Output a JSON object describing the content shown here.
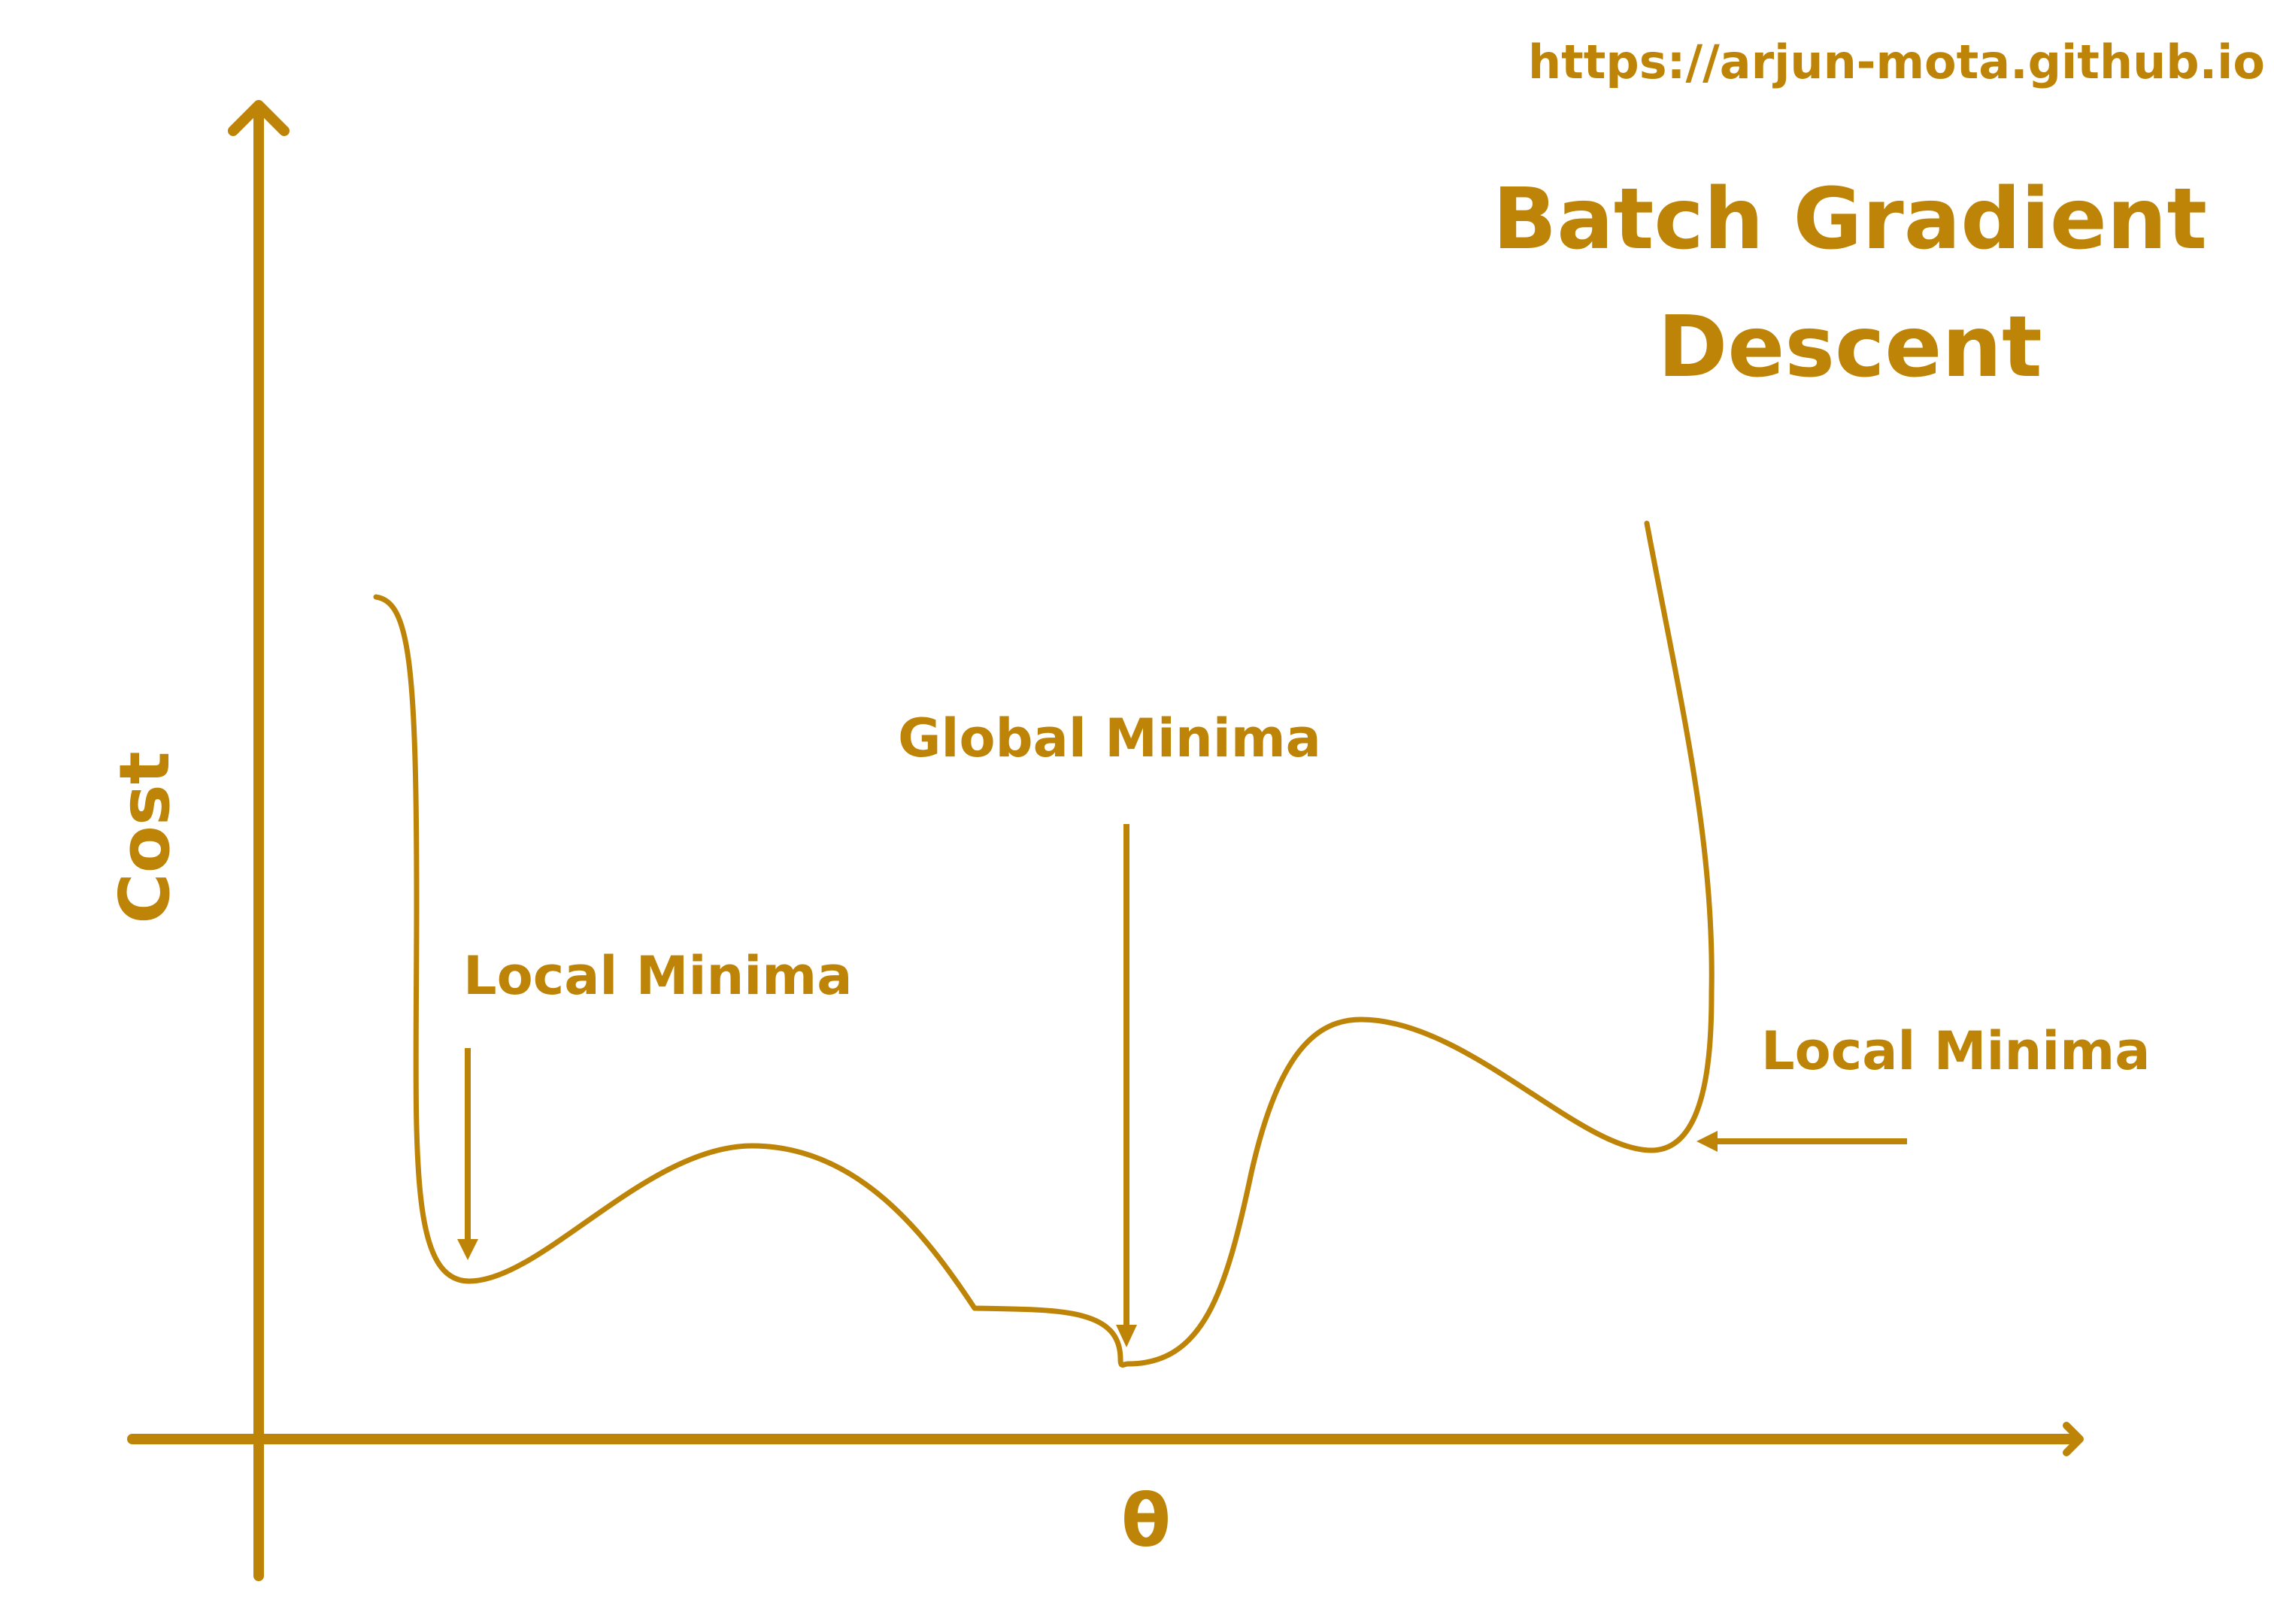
{
  "url": "https://arjun-mota.github.io",
  "title": {
    "line1": "Batch Gradient",
    "line2": "Descent"
  },
  "axes": {
    "y_label": "Cost",
    "x_label": "θ"
  },
  "annotations": {
    "local_left": "Local Minima",
    "global": "Global Minima",
    "local_right": "Local Minima"
  },
  "colors": {
    "accent": "#BD8407",
    "background": "#FFFFFF"
  }
}
